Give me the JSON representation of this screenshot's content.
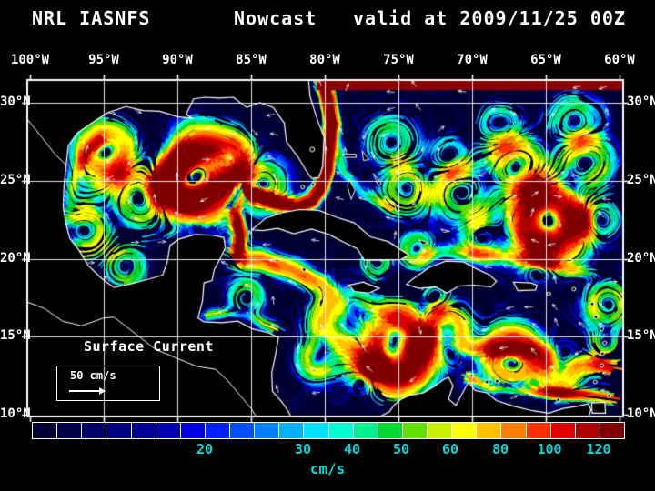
{
  "title": {
    "model": "NRL IASNFS",
    "product": "Nowcast",
    "valid": "valid at 2009/11/25 00Z"
  },
  "axes": {
    "lon": [
      "100°W",
      "95°W",
      "90°W",
      "85°W",
      "80°W",
      "75°W",
      "70°W",
      "65°W",
      "60°W"
    ],
    "lat_left": [
      "30°N",
      "25°N",
      "20°N",
      "15°N",
      "10°N"
    ],
    "lat_right": [
      "30°N",
      "25°N",
      "20°N",
      "15°N",
      "10°N"
    ]
  },
  "map": {
    "label": "Surface Current",
    "scale": "50 cm/s"
  },
  "colorbar": {
    "units": "cm/s",
    "ticks": [
      "20",
      "30",
      "40",
      "50",
      "60",
      "80",
      "100",
      "120"
    ],
    "label_color": "#00d9d9",
    "colors": [
      "#000034",
      "#00004d",
      "#000066",
      "#000080",
      "#000099",
      "#0000b3",
      "#0000e0",
      "#0021ff",
      "#0050ff",
      "#0080ff",
      "#00b0ff",
      "#00e0ff",
      "#00ffd0",
      "#00f090",
      "#00d830",
      "#60e000",
      "#c8f000",
      "#ffff00",
      "#ffc000",
      "#ff8000",
      "#ff3000",
      "#e00000",
      "#b00000",
      "#800000"
    ]
  },
  "flow": {
    "ocean_base": "#000030",
    "boundary_strip": "#8b0000",
    "vortices": [
      {
        "c": [
          -88.7,
          25.4
        ],
        "r": 1.6,
        "s": 135,
        "d": -1
      },
      {
        "c": [
          -94.8,
          26.8
        ],
        "r": 1.2,
        "s": 75,
        "d": -1
      },
      {
        "c": [
          -92.5,
          24.0
        ],
        "r": 1.4,
        "s": 55,
        "d": 1
      },
      {
        "c": [
          -96.3,
          21.8
        ],
        "r": 1.1,
        "s": 65,
        "d": 1
      },
      {
        "c": [
          -90.3,
          26.8
        ],
        "r": 1.0,
        "s": 45,
        "d": 1
      },
      {
        "c": [
          -86.2,
          26.6
        ],
        "r": 0.9,
        "s": 50,
        "d": -1
      },
      {
        "c": [
          -84.3,
          24.6
        ],
        "r": 1.0,
        "s": 55,
        "d": 1
      },
      {
        "c": [
          -90.0,
          24.5
        ],
        "r": 0.9,
        "s": 40,
        "d": -1
      },
      {
        "c": [
          -93.5,
          19.5
        ],
        "r": 0.8,
        "s": 45,
        "d": -1
      },
      {
        "c": [
          -75.3,
          14.2
        ],
        "r": 1.5,
        "s": 135,
        "d": -1
      },
      {
        "c": [
          -71.8,
          15.2
        ],
        "r": 1.1,
        "s": 70,
        "d": 1
      },
      {
        "c": [
          -78.8,
          15.8
        ],
        "r": 1.3,
        "s": 75,
        "d": -1
      },
      {
        "c": [
          -67.3,
          13.6
        ],
        "r": 1.2,
        "s": 80,
        "d": 1
      },
      {
        "c": [
          -64.0,
          13.0
        ],
        "r": 0.9,
        "s": 60,
        "d": -1
      },
      {
        "c": [
          -73.8,
          20.6
        ],
        "r": 0.7,
        "s": 55,
        "d": -1
      },
      {
        "c": [
          -85.3,
          17.5
        ],
        "r": 0.7,
        "s": 45,
        "d": 1
      },
      {
        "c": [
          -80.5,
          13.5
        ],
        "r": 0.8,
        "s": 50,
        "d": -1
      },
      {
        "c": [
          -77.3,
          12.3
        ],
        "r": 0.7,
        "s": 55,
        "d": 1
      },
      {
        "c": [
          -76.5,
          19.8
        ],
        "r": 0.6,
        "s": 50,
        "d": 1
      },
      {
        "c": [
          -64.8,
          22.4
        ],
        "r": 1.5,
        "s": 120,
        "d": -1
      },
      {
        "c": [
          -67.0,
          25.8
        ],
        "r": 1.2,
        "s": 65,
        "d": 1
      },
      {
        "c": [
          -62.3,
          26.3
        ],
        "r": 1.1,
        "s": 55,
        "d": -1
      },
      {
        "c": [
          -70.8,
          24.3
        ],
        "r": 1.2,
        "s": 50,
        "d": 1
      },
      {
        "c": [
          -60.8,
          17.0
        ],
        "r": 1.0,
        "s": 60,
        "d": -1
      },
      {
        "c": [
          -69.3,
          21.3
        ],
        "r": 0.9,
        "s": 45,
        "d": -1
      },
      {
        "c": [
          -74.5,
          24.5
        ],
        "r": 1.0,
        "s": 50,
        "d": -1
      },
      {
        "c": [
          -65.5,
          19.6
        ],
        "r": 0.8,
        "s": 45,
        "d": 1
      },
      {
        "c": [
          -63.0,
          28.5
        ],
        "r": 1.1,
        "s": 45,
        "d": 1
      },
      {
        "c": [
          -68.0,
          28.5
        ],
        "r": 1.0,
        "s": 40,
        "d": -1
      },
      {
        "c": [
          -75.5,
          27.5
        ],
        "r": 1.0,
        "s": 45,
        "d": 1
      },
      {
        "c": [
          -71.5,
          26.5
        ],
        "r": 0.9,
        "s": 40,
        "d": -1
      },
      {
        "c": [
          -61.5,
          22.5
        ],
        "r": 0.9,
        "s": 50,
        "d": 1
      },
      {
        "c": [
          -60.9,
          14.5
        ],
        "r": 0.7,
        "s": 45,
        "d": -1
      },
      {
        "c": [
          -72.5,
          17.5
        ],
        "r": 0.7,
        "s": 45,
        "d": -1
      }
    ],
    "jets": [
      {
        "name": "loop-florida-gulfstream",
        "w": 0.5,
        "s": 155,
        "p": [
          [
            -85.9,
            20.0
          ],
          [
            -85.75,
            21.5
          ],
          [
            -86.1,
            23.0
          ],
          [
            -85.6,
            24.3
          ],
          [
            -84.4,
            24.15
          ],
          [
            -83.2,
            23.6
          ],
          [
            -81.9,
            23.35
          ],
          [
            -80.9,
            23.7
          ],
          [
            -80.3,
            24.5
          ],
          [
            -79.9,
            25.6
          ],
          [
            -79.75,
            27.0
          ],
          [
            -79.5,
            28.6
          ],
          [
            -79.75,
            30.2
          ],
          [
            -80.1,
            31.5
          ]
        ]
      },
      {
        "name": "caribbean-current",
        "w": 0.75,
        "s": 85,
        "p": [
          [
            -60.2,
            12.8
          ],
          [
            -62.5,
            13.3
          ],
          [
            -65.0,
            13.8
          ],
          [
            -67.5,
            14.05
          ],
          [
            -70.0,
            14.2
          ],
          [
            -72.5,
            14.5
          ],
          [
            -75.0,
            14.9
          ],
          [
            -77.0,
            15.7
          ],
          [
            -78.6,
            16.9
          ],
          [
            -80.2,
            18.3
          ],
          [
            -82.2,
            19.3
          ],
          [
            -84.3,
            19.9
          ],
          [
            -85.9,
            20.0
          ]
        ]
      },
      {
        "name": "venezuela-coast",
        "w": 0.4,
        "s": 95,
        "p": [
          [
            -60.2,
            11.0
          ],
          [
            -62.5,
            11.3
          ],
          [
            -65.0,
            11.45
          ],
          [
            -67.3,
            11.6
          ],
          [
            -68.8,
            11.8
          ],
          [
            -70.1,
            12.4
          ]
        ]
      },
      {
        "name": "honduras-coast",
        "w": 0.4,
        "s": 55,
        "p": [
          [
            -83.2,
            15.4
          ],
          [
            -84.8,
            16.2
          ],
          [
            -86.4,
            16.6
          ],
          [
            -87.8,
            16.4
          ]
        ]
      },
      {
        "name": "yucatan-shelf",
        "w": 0.35,
        "s": 45,
        "p": [
          [
            -90.6,
            21.6
          ],
          [
            -89.0,
            21.95
          ],
          [
            -87.3,
            21.75
          ]
        ]
      },
      {
        "name": "west-gulf",
        "w": 0.45,
        "s": 55,
        "p": [
          [
            -97.2,
            20.8
          ],
          [
            -97.3,
            22.8
          ],
          [
            -97.0,
            24.8
          ],
          [
            -96.2,
            26.6
          ],
          [
            -95.2,
            27.6
          ]
        ]
      },
      {
        "name": "antilles-current",
        "w": 0.5,
        "s": 45,
        "p": [
          [
            -61.5,
            18.9
          ],
          [
            -64.5,
            19.6
          ],
          [
            -67.5,
            20.1
          ],
          [
            -70.3,
            20.4
          ],
          [
            -73.0,
            20.4
          ]
        ]
      },
      {
        "name": "bahamas",
        "w": 0.4,
        "s": 38,
        "p": [
          [
            -75.5,
            23.2
          ],
          [
            -77.5,
            24.3
          ],
          [
            -78.7,
            25.6
          ],
          [
            -78.9,
            26.8
          ]
        ]
      }
    ]
  },
  "coast": {
    "mainland": [
      [
        -81.1,
        31.5
      ],
      [
        -81.0,
        30.4
      ],
      [
        -80.5,
        28.9
      ],
      [
        -80.05,
        27.8
      ],
      [
        -80.1,
        26.8
      ],
      [
        -80.15,
        25.9
      ],
      [
        -80.4,
        25.2
      ],
      [
        -80.9,
        25.15
      ],
      [
        -81.3,
        25.7
      ],
      [
        -81.8,
        26.5
      ],
      [
        -82.6,
        27.5
      ],
      [
        -82.75,
        28.7
      ],
      [
        -83.5,
        29.7
      ],
      [
        -84.4,
        30.0
      ],
      [
        -85.3,
        29.7
      ],
      [
        -86.2,
        30.35
      ],
      [
        -87.2,
        30.3
      ],
      [
        -88.1,
        30.35
      ],
      [
        -88.9,
        30.25
      ],
      [
        -89.4,
        29.25
      ],
      [
        -89.0,
        29.0
      ],
      [
        -90.0,
        29.1
      ],
      [
        -91.2,
        29.45
      ],
      [
        -92.3,
        29.5
      ],
      [
        -93.5,
        29.75
      ],
      [
        -94.75,
        29.35
      ],
      [
        -95.9,
        28.65
      ],
      [
        -96.8,
        28.05
      ],
      [
        -97.4,
        27.25
      ],
      [
        -97.55,
        26.0
      ],
      [
        -97.7,
        24.6
      ],
      [
        -97.75,
        23.3
      ],
      [
        -97.55,
        22.2
      ],
      [
        -97.3,
        21.3
      ],
      [
        -96.65,
        20.5
      ],
      [
        -96.05,
        19.55
      ],
      [
        -95.1,
        18.7
      ],
      [
        -94.3,
        18.15
      ],
      [
        -93.1,
        18.4
      ],
      [
        -91.9,
        18.7
      ],
      [
        -91.0,
        18.95
      ],
      [
        -90.7,
        19.75
      ],
      [
        -90.5,
        20.85
      ],
      [
        -89.9,
        21.25
      ],
      [
        -88.8,
        21.55
      ],
      [
        -87.6,
        21.5
      ],
      [
        -86.85,
        21.35
      ],
      [
        -86.75,
        20.7
      ],
      [
        -87.1,
        20.0
      ],
      [
        -87.5,
        19.3
      ],
      [
        -87.65,
        18.6
      ],
      [
        -88.2,
        18.45
      ],
      [
        -88.3,
        17.3
      ],
      [
        -88.6,
        16.2
      ],
      [
        -88.2,
        15.95
      ],
      [
        -87.0,
        15.9
      ],
      [
        -85.9,
        16.0
      ],
      [
        -84.9,
        15.5
      ],
      [
        -83.8,
        15.25
      ],
      [
        -83.15,
        14.95
      ],
      [
        -83.35,
        13.8
      ],
      [
        -83.6,
        12.7
      ],
      [
        -83.55,
        11.5
      ],
      [
        -82.9,
        10.8
      ],
      [
        -82.4,
        10.1
      ],
      [
        -82.3,
        9.8
      ]
    ],
    "pacific": [
      [
        -100.4,
        17.3
      ],
      [
        -99.0,
        16.8
      ],
      [
        -97.8,
        16.0
      ],
      [
        -96.5,
        15.7
      ],
      [
        -95.0,
        16.2
      ],
      [
        -94.3,
        16.25
      ],
      [
        -93.0,
        15.3
      ],
      [
        -91.5,
        14.2
      ],
      [
        -90.0,
        13.6
      ],
      [
        -88.7,
        13.1
      ],
      [
        -87.4,
        12.9
      ],
      [
        -86.6,
        12.2
      ],
      [
        -85.8,
        11.3
      ],
      [
        -85.0,
        10.4
      ],
      [
        -84.6,
        9.8
      ]
    ],
    "rio_grande": [
      [
        -100.4,
        29.2
      ],
      [
        -99.3,
        27.9
      ],
      [
        -98.3,
        26.7
      ],
      [
        -97.55,
        26.0
      ]
    ],
    "south_america": [
      [
        -76.4,
        9.8
      ],
      [
        -75.6,
        10.2
      ],
      [
        -75.3,
        10.6
      ],
      [
        -74.8,
        11.0
      ],
      [
        -74.2,
        11.25
      ],
      [
        -73.3,
        11.4
      ],
      [
        -72.6,
        11.8
      ],
      [
        -71.95,
        12.25
      ],
      [
        -71.6,
        12.4
      ],
      [
        -71.3,
        11.85
      ],
      [
        -71.6,
        11.0
      ],
      [
        -71.1,
        10.6
      ],
      [
        -70.7,
        11.3
      ],
      [
        -70.25,
        12.1
      ],
      [
        -69.8,
        11.55
      ],
      [
        -69.0,
        11.4
      ],
      [
        -68.35,
        10.9
      ],
      [
        -67.2,
        10.55
      ],
      [
        -65.9,
        10.25
      ],
      [
        -64.8,
        10.1
      ],
      [
        -63.8,
        10.4
      ],
      [
        -62.8,
        10.55
      ],
      [
        -62.1,
        10.7
      ],
      [
        -61.95,
        10.3
      ],
      [
        -62.1,
        9.8
      ]
    ],
    "cuba": [
      [
        -84.95,
        21.85
      ],
      [
        -84.0,
        22.6
      ],
      [
        -82.9,
        22.95
      ],
      [
        -81.7,
        23.15
      ],
      [
        -80.4,
        23.1
      ],
      [
        -79.2,
        22.65
      ],
      [
        -78.0,
        22.3
      ],
      [
        -76.9,
        21.4
      ],
      [
        -75.7,
        21.1
      ],
      [
        -74.3,
        20.25
      ],
      [
        -74.8,
        19.95
      ],
      [
        -76.1,
        19.9
      ],
      [
        -77.3,
        19.9
      ],
      [
        -77.8,
        20.65
      ],
      [
        -78.7,
        21.05
      ],
      [
        -79.7,
        21.55
      ],
      [
        -80.9,
        21.9
      ],
      [
        -82.1,
        21.6
      ],
      [
        -83.2,
        21.95
      ],
      [
        -84.2,
        21.8
      ]
    ],
    "hispaniola": [
      [
        -74.45,
        18.35
      ],
      [
        -74.1,
        18.65
      ],
      [
        -72.9,
        19.45
      ],
      [
        -71.8,
        19.85
      ],
      [
        -70.6,
        19.8
      ],
      [
        -69.7,
        19.35
      ],
      [
        -68.8,
        18.95
      ],
      [
        -68.35,
        18.55
      ],
      [
        -68.7,
        18.2
      ],
      [
        -69.9,
        18.3
      ],
      [
        -70.9,
        18.25
      ],
      [
        -71.7,
        17.8
      ],
      [
        -72.5,
        18.2
      ],
      [
        -73.6,
        18.1
      ]
    ],
    "jamaica": [
      [
        -78.35,
        18.3
      ],
      [
        -77.4,
        18.5
      ],
      [
        -76.3,
        18.1
      ],
      [
        -77.0,
        17.8
      ],
      [
        -78.0,
        17.9
      ]
    ],
    "puerto_rico": [
      [
        -67.2,
        18.5
      ],
      [
        -66.0,
        18.45
      ],
      [
        -65.6,
        18.3
      ],
      [
        -65.7,
        18.0
      ],
      [
        -66.9,
        17.95
      ]
    ],
    "trinidad": [
      [
        -61.9,
        10.75
      ],
      [
        -61.0,
        10.8
      ],
      [
        -60.95,
        10.1
      ],
      [
        -61.85,
        10.1
      ]
    ],
    "islets": [
      [
        [
          -78.75,
          26.7
        ],
        [
          -77.9,
          26.7
        ],
        [
          -77.85,
          26.5
        ],
        [
          -78.65,
          26.5
        ]
      ],
      [
        [
          -77.45,
          26.9
        ],
        [
          -77.0,
          26.35
        ],
        [
          -77.35,
          26.3
        ]
      ],
      [
        [
          -78.35,
          25.1
        ],
        [
          -77.95,
          24.4
        ],
        [
          -78.2,
          23.8
        ],
        [
          -78.45,
          24.6
        ]
      ],
      [
        [
          -76.7,
          25.45
        ],
        [
          -76.15,
          24.8
        ],
        [
          -76.35,
          24.7
        ]
      ],
      [
        [
          -75.35,
          23.65
        ],
        [
          -74.9,
          23.1
        ],
        [
          -75.1,
          23.05
        ]
      ],
      [
        [
          -73.6,
          21.2
        ],
        [
          -73.0,
          21.05
        ],
        [
          -73.35,
          20.9
        ]
      ],
      [
        [
          -72.1,
          21.9
        ],
        [
          -71.5,
          21.75
        ],
        [
          -71.9,
          21.7
        ]
      ]
    ],
    "dots": [
      [
        -63.1,
        18.05
      ],
      [
        -61.85,
        17.1
      ],
      [
        -61.6,
        16.25
      ],
      [
        -61.2,
        15.5
      ],
      [
        -61.0,
        14.6
      ],
      [
        -61.15,
        13.9
      ],
      [
        -61.2,
        13.15
      ],
      [
        -61.65,
        12.1
      ],
      [
        -60.7,
        11.2
      ],
      [
        -64.15,
        10.95
      ],
      [
        -69.0,
        12.1
      ],
      [
        -70.0,
        12.5
      ],
      [
        -68.3,
        12.15
      ],
      [
        -64.8,
        17.75
      ],
      [
        -81.4,
        19.3
      ],
      [
        -80.8,
        24.75
      ],
      [
        -81.5,
        24.6
      ]
    ],
    "lake": [
      -80.85,
      27.0
    ]
  }
}
